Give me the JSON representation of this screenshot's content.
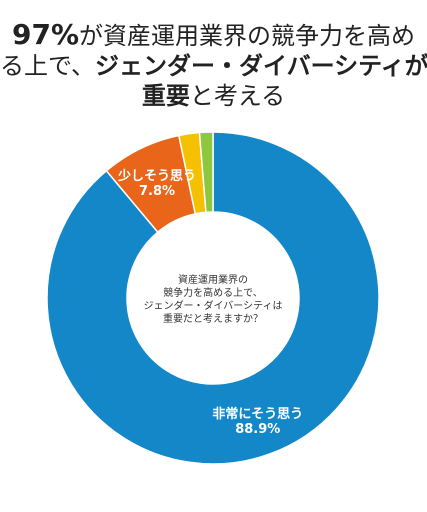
{
  "title": {
    "line1_pct": "97%",
    "line1_rest": "が資産運用業界の競争力を高め",
    "line2_a": "る上で、",
    "line2_b": "ジェンダー・ダイバーシティが",
    "line3_a": "重要",
    "line3_b": "と考える"
  },
  "center_text": [
    "資産運用業界の",
    "競争力を高める上で、",
    "ジェンダー・ダイバーシティは",
    "重要だと考えますか？"
  ],
  "chart_data": {
    "type": "pie",
    "donut": true,
    "title": "",
    "slices": [
      {
        "label": "非常にそう思う",
        "value": 88.9,
        "value_text": "88.9%",
        "color": "#1487c9"
      },
      {
        "label": "少しそう思う",
        "value": 7.8,
        "value_text": "7.8%",
        "color": "#e8651a"
      },
      {
        "label": "",
        "value": 2.0,
        "value_text": "",
        "color": "#f5c000"
      },
      {
        "label": "",
        "value": 1.3,
        "value_text": "",
        "color": "#8dc63f"
      }
    ]
  }
}
